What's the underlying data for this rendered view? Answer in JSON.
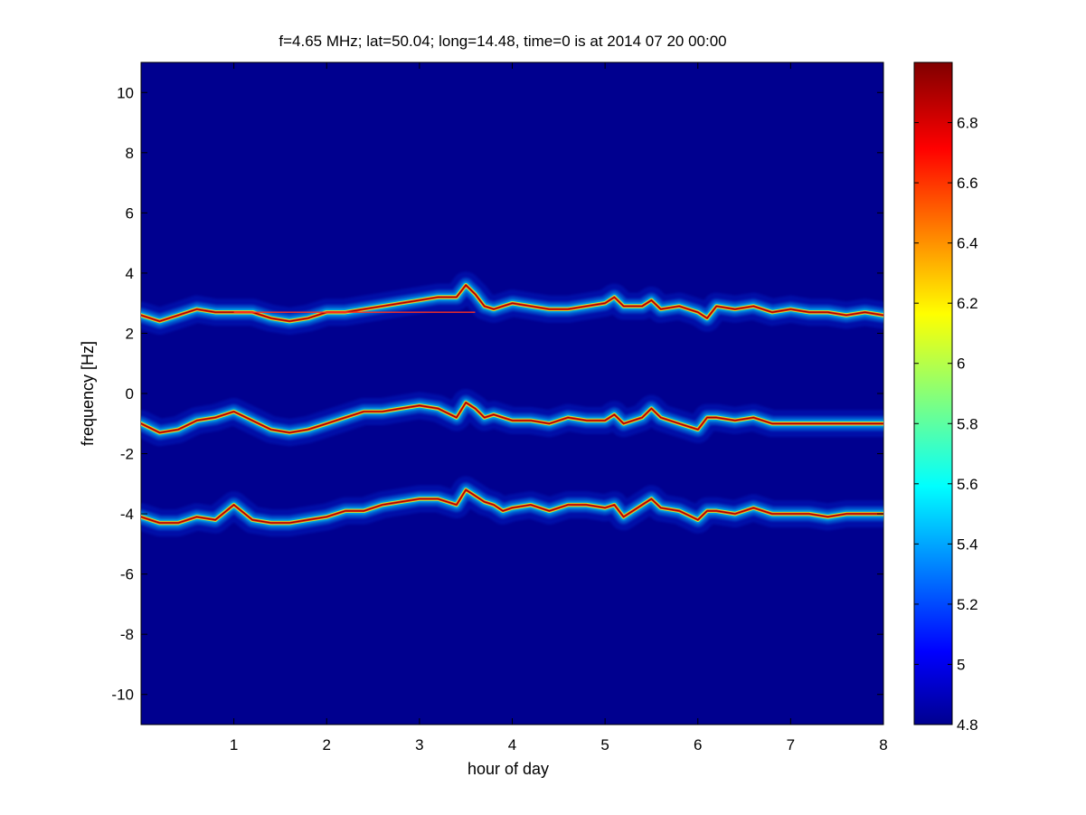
{
  "chart_data": {
    "type": "heatmap",
    "title": "f=4.65 MHz;  lat=50.04; long=14.48, time=0 is at 2014 07 20 00:00",
    "xlabel": "hour of day",
    "ylabel": "frequency [Hz]",
    "xlim": [
      0,
      8
    ],
    "ylim": [
      -11,
      11
    ],
    "x_ticks": [
      1,
      2,
      3,
      4,
      5,
      6,
      7,
      8
    ],
    "x_tick_labels": [
      "1",
      "2",
      "3",
      "4",
      "5",
      "6",
      "7",
      "8"
    ],
    "y_ticks": [
      10,
      8,
      6,
      4,
      2,
      0,
      -2,
      -4,
      -6,
      -8,
      -10
    ],
    "y_tick_labels": [
      "10",
      "8",
      "6",
      "4",
      "2",
      "0",
      "-2",
      "-4",
      "-6",
      "-8",
      "-10"
    ],
    "grid": false,
    "background_value": 4.8,
    "colorbar": {
      "colormap": "jet",
      "range": [
        4.8,
        7.0
      ],
      "ticks": [
        6.8,
        6.6,
        6.4,
        6.2,
        6,
        5.8,
        5.6,
        5.4,
        5.2,
        5,
        4.8
      ],
      "tick_labels": [
        "6.8",
        "6.6",
        "6.4",
        "6.2",
        "6",
        "5.8",
        "5.6",
        "5.4",
        "5.2",
        "5",
        "4.8"
      ],
      "placement": "right"
    },
    "series": [
      {
        "x": [
          0.0,
          0.2,
          0.4,
          0.6,
          0.8,
          1.0,
          1.2,
          1.4,
          1.6,
          1.8,
          2.0,
          2.2,
          2.4,
          2.6,
          2.8,
          3.0,
          3.2,
          3.4,
          3.5,
          3.6,
          3.7,
          3.8,
          3.9,
          4.0,
          4.2,
          4.4,
          4.6,
          4.8,
          5.0,
          5.1,
          5.2,
          5.4,
          5.5,
          5.6,
          5.8,
          6.0,
          6.1,
          6.2,
          6.4,
          6.6,
          6.8,
          7.0,
          7.2,
          7.4,
          7.6,
          7.8,
          8.0
        ],
        "y": [
          2.6,
          2.4,
          2.6,
          2.8,
          2.7,
          2.7,
          2.7,
          2.5,
          2.4,
          2.5,
          2.7,
          2.7,
          2.8,
          2.9,
          3.0,
          3.1,
          3.2,
          3.2,
          3.6,
          3.3,
          2.9,
          2.8,
          2.9,
          3.0,
          2.9,
          2.8,
          2.8,
          2.9,
          3.0,
          3.2,
          2.9,
          2.9,
          3.1,
          2.8,
          2.9,
          2.7,
          2.5,
          2.9,
          2.8,
          2.9,
          2.7,
          2.8,
          2.7,
          2.7,
          2.6,
          2.7,
          2.6
        ]
      },
      {
        "x": [
          0.0,
          0.2,
          0.4,
          0.6,
          0.8,
          1.0,
          1.2,
          1.4,
          1.6,
          1.8,
          2.0,
          2.2,
          2.4,
          2.6,
          2.8,
          3.0,
          3.2,
          3.4,
          3.5,
          3.6,
          3.7,
          3.8,
          3.9,
          4.0,
          4.2,
          4.4,
          4.6,
          4.8,
          5.0,
          5.1,
          5.2,
          5.4,
          5.5,
          5.6,
          5.8,
          6.0,
          6.1,
          6.2,
          6.4,
          6.6,
          6.8,
          7.0,
          7.2,
          7.4,
          7.6,
          7.8,
          8.0
        ],
        "y": [
          -1.0,
          -1.3,
          -1.2,
          -0.9,
          -0.8,
          -0.6,
          -0.9,
          -1.2,
          -1.3,
          -1.2,
          -1.0,
          -0.8,
          -0.6,
          -0.6,
          -0.5,
          -0.4,
          -0.5,
          -0.8,
          -0.3,
          -0.5,
          -0.8,
          -0.7,
          -0.8,
          -0.9,
          -0.9,
          -1.0,
          -0.8,
          -0.9,
          -0.9,
          -0.7,
          -1.0,
          -0.8,
          -0.5,
          -0.8,
          -1.0,
          -1.2,
          -0.8,
          -0.8,
          -0.9,
          -0.8,
          -1.0,
          -1.0,
          -1.0,
          -1.0,
          -1.0,
          -1.0,
          -1.0
        ]
      },
      {
        "x": [
          0.0,
          0.2,
          0.4,
          0.6,
          0.8,
          1.0,
          1.2,
          1.4,
          1.6,
          1.8,
          2.0,
          2.2,
          2.4,
          2.6,
          2.8,
          3.0,
          3.2,
          3.4,
          3.5,
          3.6,
          3.7,
          3.8,
          3.9,
          4.0,
          4.2,
          4.4,
          4.6,
          4.8,
          5.0,
          5.1,
          5.2,
          5.4,
          5.5,
          5.6,
          5.8,
          6.0,
          6.1,
          6.2,
          6.4,
          6.6,
          6.8,
          7.0,
          7.2,
          7.4,
          7.6,
          7.8,
          8.0
        ],
        "y": [
          -4.1,
          -4.3,
          -4.3,
          -4.1,
          -4.2,
          -3.7,
          -4.2,
          -4.3,
          -4.3,
          -4.2,
          -4.1,
          -3.9,
          -3.9,
          -3.7,
          -3.6,
          -3.5,
          -3.5,
          -3.7,
          -3.2,
          -3.4,
          -3.6,
          -3.7,
          -3.9,
          -3.8,
          -3.7,
          -3.9,
          -3.7,
          -3.7,
          -3.8,
          -3.7,
          -4.1,
          -3.7,
          -3.5,
          -3.8,
          -3.9,
          -4.2,
          -3.9,
          -3.9,
          -4.0,
          -3.8,
          -4.0,
          -4.0,
          -4.0,
          -4.1,
          -4.0,
          -4.0,
          -4.0
        ]
      }
    ],
    "reference_line": {
      "y": 2.7,
      "x": [
        1.0,
        3.6
      ]
    }
  }
}
